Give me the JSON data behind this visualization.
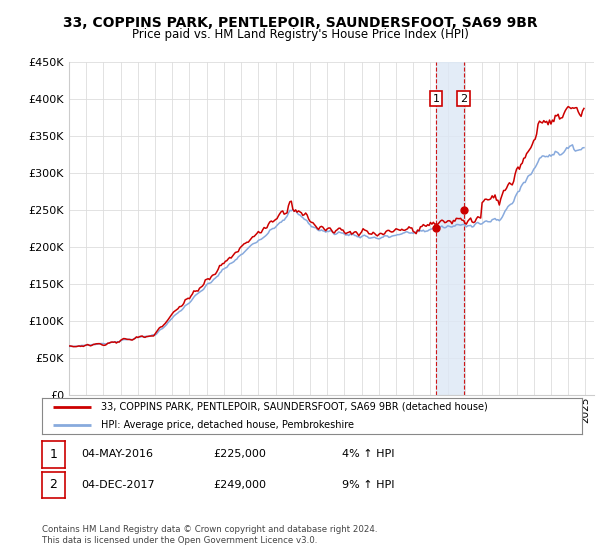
{
  "title": "33, COPPINS PARK, PENTLEPOIR, SAUNDERSFOOT, SA69 9BR",
  "subtitle": "Price paid vs. HM Land Registry's House Price Index (HPI)",
  "ylim": [
    0,
    450000
  ],
  "xlim_start": 1995.0,
  "xlim_end": 2025.5,
  "legend_property_label": "33, COPPINS PARK, PENTLEPOIR, SAUNDERSFOOT, SA69 9BR (detached house)",
  "legend_hpi_label": "HPI: Average price, detached house, Pembrokeshire",
  "property_color": "#cc0000",
  "hpi_color": "#88aadd",
  "shade_color": "#dde8f5",
  "sale1_date": 2016.33,
  "sale1_price": 225000,
  "sale2_date": 2017.92,
  "sale2_price": 249000,
  "footer": "Contains HM Land Registry data © Crown copyright and database right 2024.\nThis data is licensed under the Open Government Licence v3.0.",
  "background_color": "#ffffff",
  "grid_color": "#dddddd"
}
